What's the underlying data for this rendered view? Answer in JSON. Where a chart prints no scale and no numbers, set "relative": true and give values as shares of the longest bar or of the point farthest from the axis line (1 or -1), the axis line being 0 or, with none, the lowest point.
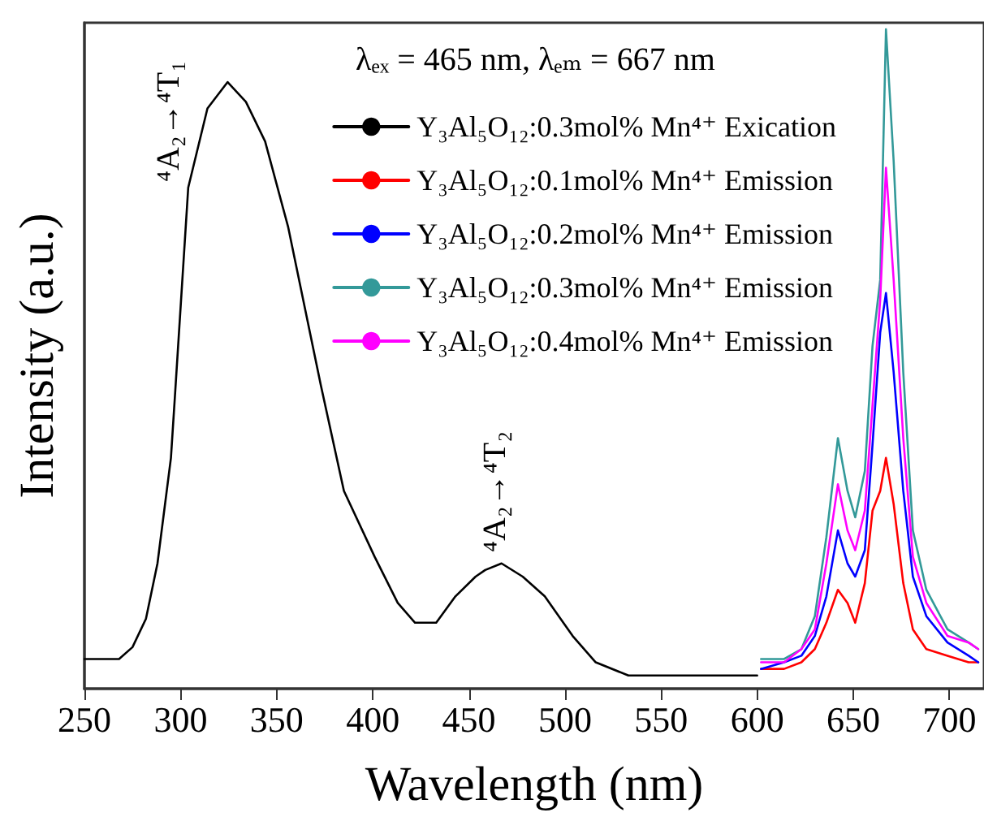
{
  "chart_data": {
    "type": "line",
    "xlabel": "Wavelength (nm)",
    "ylabel": "Intensity (a.u.)",
    "annotations": [
      "λₑₓ = 465 nm, λₑₘ = 667 nm",
      "⁴A₂→⁴T₁",
      "⁴A₂→⁴T₂"
    ],
    "xlim": [
      250,
      718
    ],
    "xticks": [
      250,
      300,
      350,
      400,
      450,
      500,
      550,
      600,
      650,
      700
    ],
    "relative": true,
    "grid": false,
    "legend": "top right",
    "marker": "none",
    "line_style": "solid",
    "series": [
      {
        "name": "Y₃Al₅O₁₂:0.3mol% Mn⁴⁺ Exication",
        "color": "#000000",
        "x": [
          250,
          268,
          275,
          282,
          288,
          295,
          297,
          304,
          314,
          324.5,
          334,
          344,
          356,
          373,
          385,
          401,
          413,
          422,
          433,
          443,
          453.5,
          458.5,
          467,
          478,
          489.5,
          504,
          516,
          533,
          600
        ],
        "values": [
          0.045,
          0.045,
          0.063,
          0.106,
          0.19,
          0.35,
          0.44,
          0.76,
          0.88,
          0.92,
          0.89,
          0.83,
          0.7,
          0.46,
          0.3,
          0.2,
          0.13,
          0.1,
          0.1,
          0.14,
          0.17,
          0.18,
          0.19,
          0.17,
          0.14,
          0.08,
          0.04,
          0.02,
          0.02
        ]
      },
      {
        "name": "Y₃Al₅O₁₂:0.1mol% Mn⁴⁺ Emission",
        "color": "#ff0000",
        "x": [
          602,
          614,
          623,
          630,
          636,
          642,
          647,
          651,
          656,
          660,
          664,
          667,
          671,
          676,
          681,
          688,
          699,
          710,
          715
        ],
        "values": [
          0.03,
          0.03,
          0.04,
          0.06,
          0.1,
          0.15,
          0.13,
          0.1,
          0.16,
          0.27,
          0.3,
          0.35,
          0.28,
          0.16,
          0.09,
          0.06,
          0.05,
          0.04,
          0.04
        ]
      },
      {
        "name": "Y₃Al₅O₁₂:0.2mol% Mn⁴⁺ Emission",
        "color": "#0000ff",
        "x": [
          602,
          614,
          623,
          630,
          636,
          642,
          647,
          651,
          656,
          660,
          664,
          667,
          671,
          676,
          681,
          688,
          699,
          710,
          715
        ],
        "values": [
          0.03,
          0.04,
          0.05,
          0.08,
          0.14,
          0.24,
          0.19,
          0.17,
          0.21,
          0.37,
          0.54,
          0.6,
          0.48,
          0.3,
          0.17,
          0.11,
          0.07,
          0.05,
          0.04
        ]
      },
      {
        "name": "Y₃Al₅O₁₂:0.3mol% Mn⁴⁺ Emission",
        "color": "#339999",
        "x": [
          602,
          614,
          623,
          630,
          636,
          642,
          647,
          651,
          656,
          660,
          664,
          667,
          671,
          676,
          681,
          688,
          699,
          710,
          715
        ],
        "values": [
          0.045,
          0.045,
          0.06,
          0.11,
          0.23,
          0.38,
          0.3,
          0.26,
          0.33,
          0.52,
          0.62,
          1,
          0.8,
          0.48,
          0.24,
          0.15,
          0.09,
          0.07,
          0.06
        ]
      },
      {
        "name": "Y₃Al₅O₁₂:0.4mol% Mn⁴⁺ Emission",
        "color": "#ff00ff",
        "x": [
          602,
          614,
          623,
          630,
          636,
          642,
          647,
          651,
          656,
          660,
          664,
          667,
          671,
          676,
          681,
          688,
          699,
          710,
          715
        ],
        "values": [
          0.04,
          0.04,
          0.06,
          0.09,
          0.19,
          0.31,
          0.24,
          0.21,
          0.27,
          0.43,
          0.59,
          0.79,
          0.62,
          0.38,
          0.2,
          0.13,
          0.08,
          0.07,
          0.06
        ]
      }
    ]
  }
}
